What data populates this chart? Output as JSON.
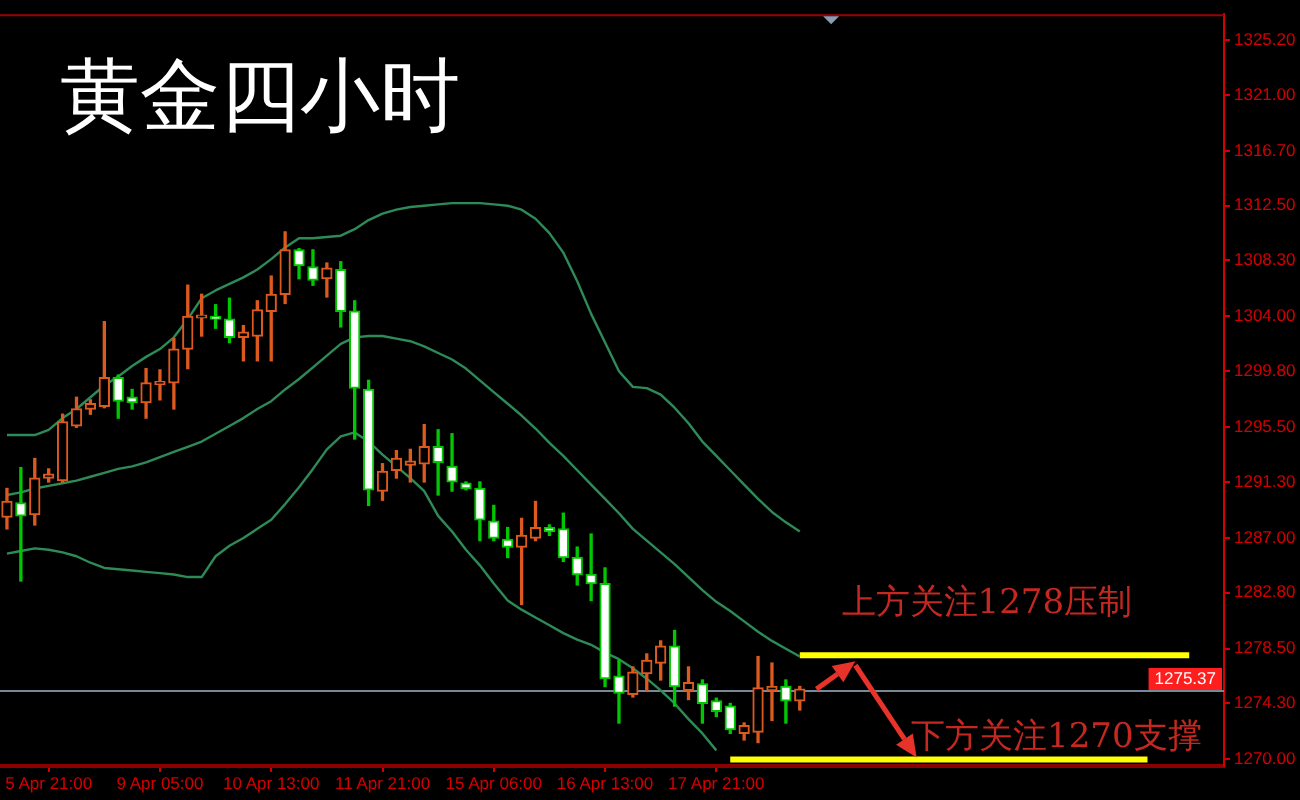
{
  "chart_data": {
    "type": "candlestick",
    "title": "黄金四小时",
    "categories": [
      null,
      null,
      null,
      "5 Apr 21:00",
      null,
      null,
      null,
      null,
      null,
      null,
      null,
      "9 Apr 05:00",
      null,
      null,
      null,
      null,
      null,
      null,
      null,
      "10 Apr 13:00",
      null,
      null,
      null,
      null,
      null,
      null,
      null,
      "11 Apr 21:00",
      null,
      null,
      null,
      null,
      null,
      null,
      null,
      "15 Apr 06:00",
      null,
      null,
      null,
      null,
      null,
      null,
      null,
      "16 Apr 13:00",
      null,
      null,
      null,
      null,
      null,
      null,
      null,
      "17 Apr 21:00",
      null,
      null,
      null,
      null,
      null,
      null,
      null,
      null,
      null,
      null,
      null,
      null,
      null,
      null,
      null,
      null,
      null,
      null,
      null,
      null,
      null,
      null,
      null,
      null,
      null,
      null,
      null,
      null,
      null,
      null,
      null,
      null,
      null,
      null,
      null,
      null
    ],
    "ohlc": [
      [
        1288.6,
        1290.8,
        1287.7,
        1289.8
      ],
      [
        1289.7,
        1292.4,
        1283.7,
        1288.7
      ],
      [
        1288.8,
        1293.1,
        1288.0,
        1291.6
      ],
      [
        1291.6,
        1292.3,
        1291.3,
        1291.9
      ],
      [
        1291.4,
        1296.5,
        1291.3,
        1295.9
      ],
      [
        1295.6,
        1297.8,
        1295.5,
        1296.9
      ],
      [
        1296.9,
        1297.6,
        1296.5,
        1297.3
      ],
      [
        1297.1,
        1303.6,
        1297.0,
        1299.3
      ],
      [
        1299.3,
        1299.5,
        1296.2,
        1297.5
      ],
      [
        1297.8,
        1298.4,
        1296.9,
        1297.4
      ],
      [
        1297.4,
        1300.0,
        1296.2,
        1298.9
      ],
      [
        1298.8,
        1299.9,
        1297.6,
        1299.0
      ],
      [
        1298.9,
        1302.3,
        1296.9,
        1301.5
      ],
      [
        1301.5,
        1306.4,
        1300.0,
        1304.0
      ],
      [
        1303.9,
        1305.7,
        1302.5,
        1304.1
      ],
      [
        1304.0,
        1304.9,
        1303.1,
        1303.8
      ],
      [
        1303.8,
        1305.4,
        1302.0,
        1302.4
      ],
      [
        1302.4,
        1303.3,
        1300.6,
        1302.8
      ],
      [
        1302.5,
        1305.2,
        1300.6,
        1304.5
      ],
      [
        1304.4,
        1307.1,
        1300.6,
        1305.7
      ],
      [
        1305.7,
        1310.5,
        1305.0,
        1309.1
      ],
      [
        1309.1,
        1309.2,
        1306.9,
        1307.9
      ],
      [
        1307.8,
        1309.1,
        1306.4,
        1306.8
      ],
      [
        1306.9,
        1308.1,
        1305.5,
        1307.7
      ],
      [
        1307.6,
        1308.2,
        1303.2,
        1304.4
      ],
      [
        1304.4,
        1305.2,
        1294.6,
        1298.5
      ],
      [
        1298.4,
        1299.1,
        1289.5,
        1290.7
      ],
      [
        1290.6,
        1292.7,
        1289.9,
        1292.1
      ],
      [
        1292.2,
        1293.7,
        1291.6,
        1293.1
      ],
      [
        1292.6,
        1293.8,
        1291.3,
        1292.9
      ],
      [
        1292.7,
        1295.7,
        1291.3,
        1294.0
      ],
      [
        1294.0,
        1295.3,
        1290.3,
        1292.8
      ],
      [
        1292.5,
        1295.0,
        1290.6,
        1291.3
      ],
      [
        1291.2,
        1291.3,
        1290.7,
        1290.8
      ],
      [
        1290.8,
        1291.3,
        1286.8,
        1288.4
      ],
      [
        1288.3,
        1289.5,
        1286.8,
        1287.0
      ],
      [
        1286.9,
        1287.8,
        1285.5,
        1286.3
      ],
      [
        1286.3,
        1288.5,
        1281.9,
        1287.2
      ],
      [
        1287.0,
        1289.8,
        1286.8,
        1287.8
      ],
      [
        1287.8,
        1288.0,
        1287.2,
        1287.5
      ],
      [
        1287.7,
        1288.9,
        1285.2,
        1285.5
      ],
      [
        1285.5,
        1286.3,
        1283.4,
        1284.2
      ],
      [
        1284.2,
        1287.3,
        1282.2,
        1283.5
      ],
      [
        1283.5,
        1284.7,
        1275.6,
        1276.2
      ],
      [
        1276.4,
        1277.6,
        1272.8,
        1275.1
      ],
      [
        1275.0,
        1277.1,
        1274.8,
        1276.7
      ],
      [
        1276.6,
        1278.1,
        1275.3,
        1277.6
      ],
      [
        1277.4,
        1279.1,
        1276.1,
        1278.7
      ],
      [
        1278.7,
        1279.9,
        1274.1,
        1275.6
      ],
      [
        1275.3,
        1277.1,
        1274.6,
        1275.9
      ],
      [
        1275.8,
        1276.1,
        1272.8,
        1274.3
      ],
      [
        1274.5,
        1274.7,
        1273.3,
        1273.7
      ],
      [
        1274.1,
        1274.3,
        1272.0,
        1272.3
      ],
      [
        1272.0,
        1272.8,
        1271.5,
        1272.6
      ],
      [
        1272.1,
        1277.9,
        1271.3,
        1275.5
      ],
      [
        1275.3,
        1277.4,
        1273.0,
        1275.6
      ],
      [
        1275.6,
        1276.1,
        1272.8,
        1274.5
      ],
      [
        1274.5,
        1275.6,
        1273.8,
        1275.4
      ],
      null,
      null,
      null,
      null,
      null,
      null,
      null,
      null,
      null,
      null,
      null,
      null,
      null,
      null,
      null,
      null,
      null,
      null,
      null,
      null,
      null,
      null,
      null,
      null,
      null,
      null,
      null,
      null,
      null,
      null
    ],
    "colors": [
      "#dc5a1e",
      "#00c800",
      "#dc5a1e",
      "#dc5a1e",
      "#dc5a1e",
      "#dc5a1e",
      "#dc5a1e",
      "#dc5a1e",
      "#00c800",
      "#00c800",
      "#dc5a1e",
      "#dc5a1e",
      "#dc5a1e",
      "#dc5a1e",
      "#dc5a1e",
      "#00c800",
      "#00c800",
      "#dc5a1e",
      "#dc5a1e",
      "#dc5a1e",
      "#dc5a1e",
      "#00c800",
      "#00c800",
      "#dc5a1e",
      "#00c800",
      "#00c800",
      "#00c800",
      "#dc5a1e",
      "#dc5a1e",
      "#dc5a1e",
      "#dc5a1e",
      "#00c800",
      "#00c800",
      "#00c800",
      "#00c800",
      "#00c800",
      "#00c800",
      "#dc5a1e",
      "#dc5a1e",
      "#00c800",
      "#00c800",
      "#00c800",
      "#00c800",
      "#00c800",
      "#00c800",
      "#dc5a1e",
      "#dc5a1e",
      "#dc5a1e",
      "#00c800",
      "#dc5a1e",
      "#00c800",
      "#00c800",
      "#00c800",
      "#dc5a1e",
      "#dc5a1e",
      "#dc5a1e",
      "#00c800",
      "#dc5a1e",
      null,
      null,
      null,
      null,
      null,
      null,
      null,
      null,
      null,
      null,
      null,
      null,
      null,
      null,
      null,
      null,
      null,
      null,
      null,
      null,
      null,
      null,
      null,
      null,
      null,
      null,
      null,
      null,
      null,
      null
    ],
    "series": [
      {
        "type": "line",
        "color": "#2e8b57",
        "values": [
          1294.9,
          1294.9,
          1294.9,
          1295.3,
          1296.2,
          1296.9,
          1297.8,
          1298.7,
          1299.4,
          1300.2,
          1300.9,
          1301.5,
          1302.4,
          1303.8,
          1305.4,
          1306.0,
          1306.5,
          1307.0,
          1307.6,
          1308.4,
          1309.3,
          1310.0,
          1310.0,
          1310.1,
          1310.2,
          1310.7,
          1311.4,
          1311.9,
          1312.2,
          1312.4,
          1312.5,
          1312.6,
          1312.7,
          1312.7,
          1312.7,
          1312.6,
          1312.5,
          1312.2,
          1311.5,
          1310.4,
          1308.9,
          1306.7,
          1304.2,
          1302.0,
          1299.8,
          1298.6,
          1298.5,
          1298.0,
          1297.0,
          1295.8,
          1294.4,
          1293.3,
          1292.2,
          1291.1,
          1290.0,
          1289.0,
          1288.2,
          1287.5,
          null,
          null,
          null,
          null,
          null,
          null,
          null,
          null,
          null,
          null,
          null,
          null,
          null,
          null,
          null,
          null,
          null,
          null,
          null,
          null,
          null,
          null,
          null,
          null,
          null,
          null,
          null,
          null,
          null,
          null
        ]
      },
      {
        "type": "line",
        "color": "#2e8b57",
        "values": [
          1290.3,
          1290.5,
          1290.8,
          1291.0,
          1291.2,
          1291.4,
          1291.7,
          1292.0,
          1292.3,
          1292.5,
          1292.8,
          1293.2,
          1293.6,
          1294.0,
          1294.4,
          1295.0,
          1295.6,
          1296.2,
          1296.9,
          1297.5,
          1298.4,
          1299.2,
          1300.1,
          1301.0,
          1301.9,
          1302.4,
          1302.5,
          1302.5,
          1302.3,
          1302.1,
          1301.7,
          1301.2,
          1300.7,
          1300.0,
          1299.1,
          1298.2,
          1297.3,
          1296.4,
          1295.4,
          1294.3,
          1293.3,
          1292.2,
          1291.1,
          1290.0,
          1288.9,
          1287.7,
          1286.8,
          1285.9,
          1285.0,
          1284.0,
          1283.0,
          1282.1,
          1281.4,
          1280.6,
          1279.8,
          1279.1,
          1278.5,
          1277.9,
          null,
          null,
          null,
          null,
          null,
          null,
          null,
          null,
          null,
          null,
          null,
          null,
          null,
          null,
          null,
          null,
          null,
          null,
          null,
          null,
          null,
          null,
          null,
          null,
          null,
          null,
          null,
          null,
          null,
          null
        ]
      },
      {
        "type": "line",
        "color": "#2e8b57",
        "values": [
          1285.8,
          1286.0,
          1286.2,
          1286.1,
          1285.9,
          1285.6,
          1285.1,
          1284.7,
          1284.6,
          1284.5,
          1284.4,
          1284.3,
          1284.2,
          1284.0,
          1284.0,
          1285.6,
          1286.4,
          1287.0,
          1287.7,
          1288.4,
          1289.6,
          1290.9,
          1292.3,
          1293.8,
          1294.8,
          1295.1,
          1294.4,
          1293.4,
          1292.5,
          1291.6,
          1290.6,
          1288.7,
          1287.5,
          1286.1,
          1284.9,
          1283.5,
          1282.2,
          1281.5,
          1280.9,
          1280.3,
          1279.7,
          1279.2,
          1278.8,
          1278.2,
          1277.7,
          1277.0,
          1276.2,
          1275.3,
          1274.3,
          1273.1,
          1272.0,
          1270.7,
          null,
          null,
          null,
          null,
          null,
          null,
          null,
          null,
          null,
          null,
          null,
          null,
          null,
          null,
          null,
          null,
          null,
          null,
          null,
          null,
          null,
          null,
          null,
          null,
          null,
          null,
          null,
          null,
          null,
          null,
          null,
          null,
          null,
          null,
          null,
          null
        ]
      },
      {
        "type": "line",
        "color": "#ffff00",
        "values": [
          null,
          null,
          null,
          null,
          null,
          null,
          null,
          null,
          null,
          null,
          null,
          null,
          null,
          null,
          null,
          null,
          null,
          null,
          null,
          null,
          null,
          null,
          null,
          null,
          null,
          null,
          null,
          null,
          null,
          null,
          null,
          null,
          null,
          null,
          null,
          null,
          null,
          null,
          null,
          null,
          null,
          null,
          null,
          null,
          null,
          null,
          null,
          null,
          null,
          null,
          null,
          null,
          null,
          null,
          null,
          null,
          null,
          1278,
          1278,
          1278,
          1278,
          1278,
          1278,
          1278,
          1278,
          1278,
          1278,
          1278,
          1278,
          1278,
          1278,
          1278,
          1278,
          1278,
          1278,
          1278,
          1278,
          1278,
          1278,
          1278,
          1278,
          1278,
          1278,
          1278,
          1278,
          1278,
          null,
          null
        ]
      },
      {
        "type": "line",
        "color": "#ffff00",
        "values": [
          null,
          null,
          null,
          null,
          null,
          null,
          null,
          null,
          null,
          null,
          null,
          null,
          null,
          null,
          null,
          null,
          null,
          null,
          null,
          null,
          null,
          null,
          null,
          null,
          null,
          null,
          null,
          null,
          null,
          null,
          null,
          null,
          null,
          null,
          null,
          null,
          null,
          null,
          null,
          null,
          null,
          null,
          null,
          null,
          null,
          null,
          null,
          null,
          null,
          null,
          null,
          null,
          1270,
          1270,
          1270,
          1270,
          1270,
          1270,
          1270,
          1270,
          1270,
          1270,
          1270,
          1270,
          1270,
          1270,
          1270,
          1270,
          1270,
          1270,
          1270,
          1270,
          1270,
          1270,
          1270,
          1270,
          1270,
          1270,
          1270,
          1270,
          1270,
          1270,
          1270,
          null,
          null,
          null,
          null,
          null
        ]
      }
    ],
    "ylim": [
      1269.5,
      1327.2
    ],
    "yticks": [
      {
        "value": 1270,
        "label": "1270.00"
      },
      {
        "value": 1274.3,
        "label": "1274.30"
      },
      {
        "value": 1278.5,
        "label": "1278.50"
      },
      {
        "value": 1282.8,
        "label": "1282.80"
      },
      {
        "value": 1287,
        "label": "1287.00"
      },
      {
        "value": 1291.3,
        "label": "1291.30"
      },
      {
        "value": 1295.5,
        "label": "1295.50"
      },
      {
        "value": 1299.8,
        "label": "1299.80"
      },
      {
        "value": 1304,
        "label": "1304.00"
      },
      {
        "value": 1308.3,
        "label": "1308.30"
      },
      {
        "value": 1312.5,
        "label": "1312.50"
      },
      {
        "value": 1316.7,
        "label": "1316.70"
      },
      {
        "value": 1321,
        "label": "1321.00"
      },
      {
        "value": 1325.2,
        "label": "1325.20"
      }
    ],
    "ref_lines": [
      {
        "axis": "y",
        "value": 1275.37,
        "label": "1275.37",
        "color": "#778899"
      }
    ],
    "annotations": [
      {
        "text": "上方关注1278压制",
        "y": 1278
      },
      {
        "text": "下方关注1270支撑",
        "y": 1270
      }
    ]
  }
}
